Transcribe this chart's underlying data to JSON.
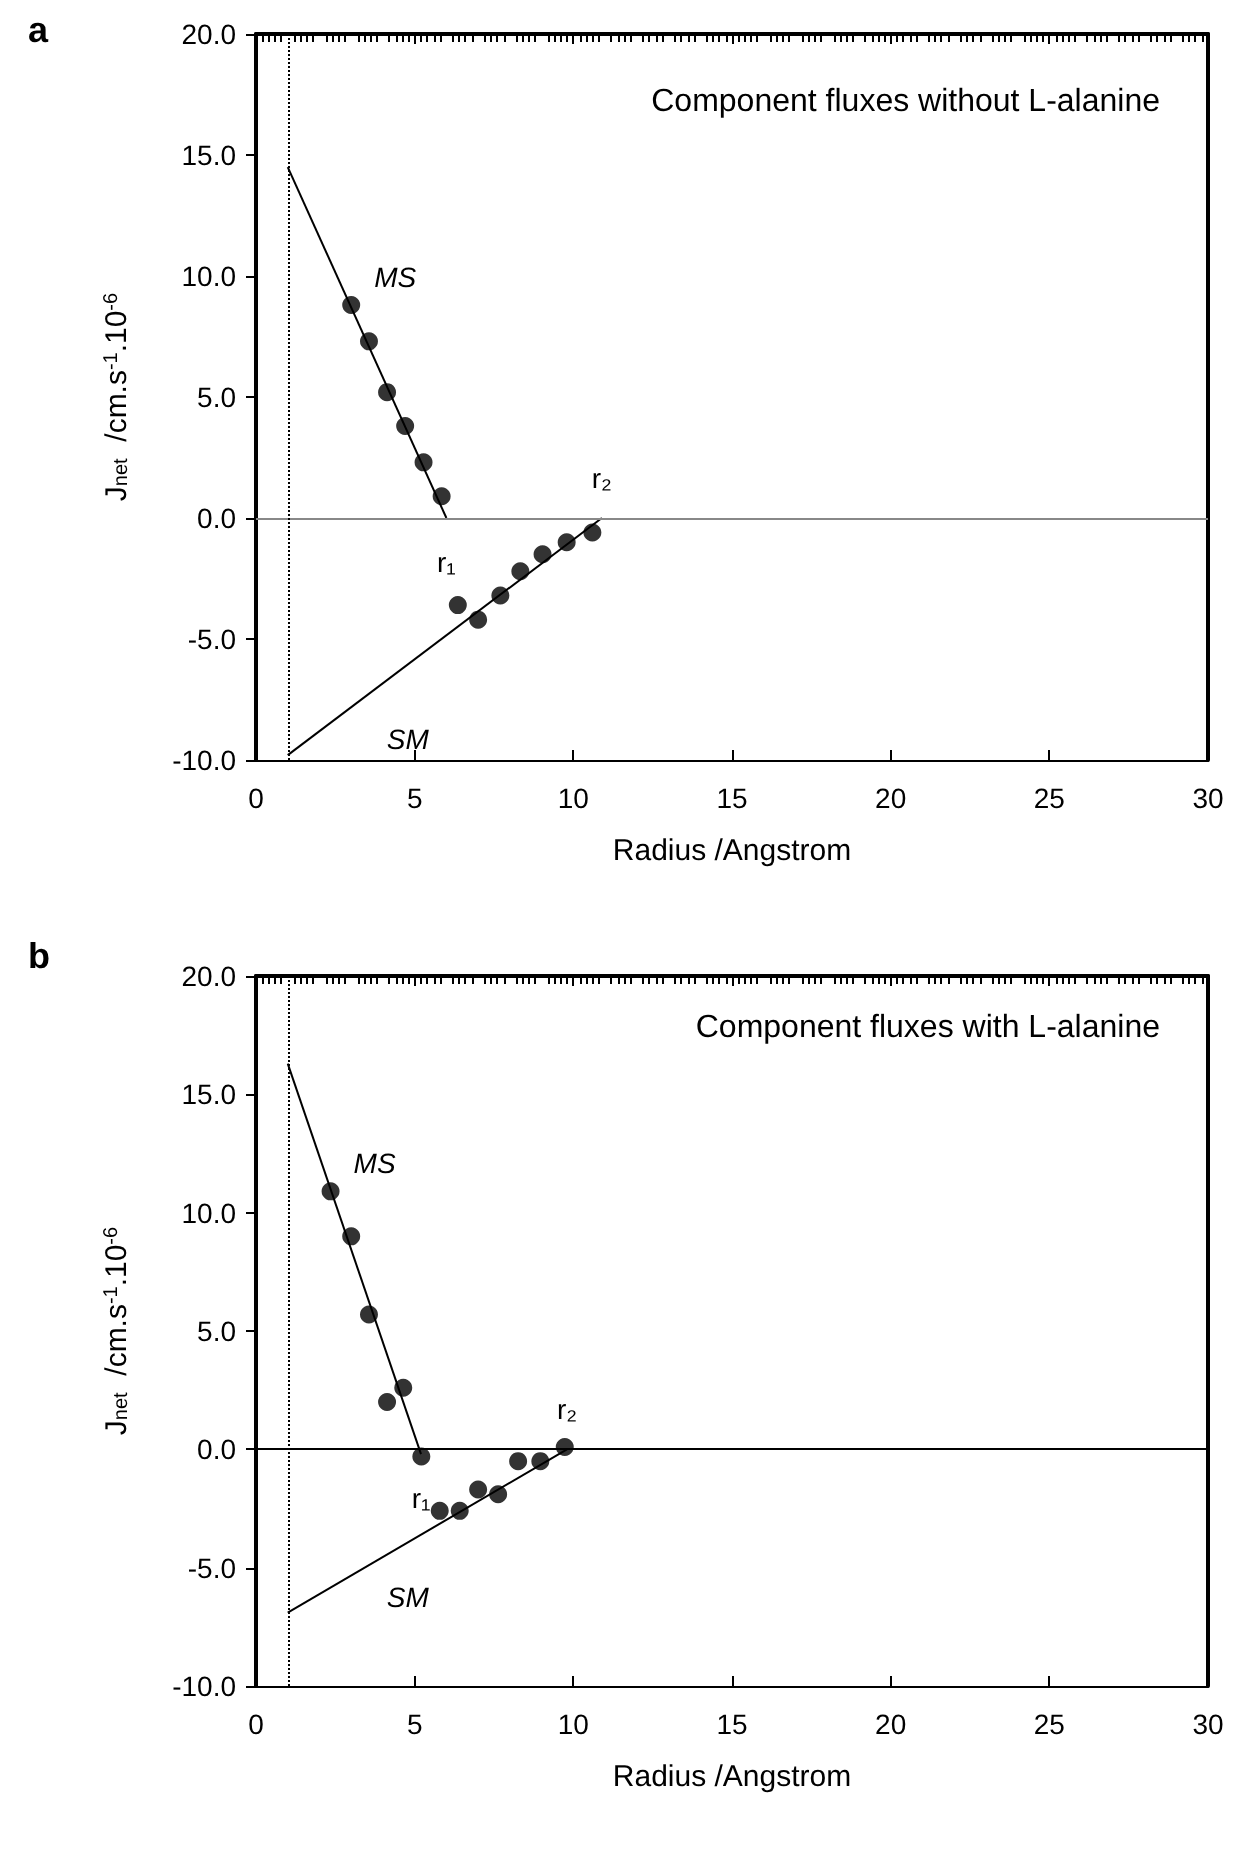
{
  "chart_data": [
    {
      "type": "scatter",
      "title": "Component fluxes without L-alanine",
      "xlabel": "Radius /Angstrom",
      "ylabel": "J$_{net}$  /cm.s$^{-1}$.10$^{-6}$",
      "xlim": [
        0,
        30
      ],
      "xticks": [
        0,
        5,
        10,
        15,
        20,
        25,
        30
      ],
      "ylim": [
        -10,
        20
      ],
      "yticks": [
        {
          "value": -10,
          "label": "-10.0"
        },
        {
          "value": -5,
          "label": "-5.0"
        },
        {
          "value": 0,
          "label": "0.0"
        },
        {
          "value": 5,
          "label": "5.0"
        },
        {
          "value": 10,
          "label": "10.0"
        },
        {
          "value": 15,
          "label": "15.0"
        },
        {
          "value": 20,
          "label": "20.0"
        }
      ],
      "grid": false,
      "marker": "circle",
      "series": [
        {
          "color": "#000000",
          "x": [
            3.0,
            3.56,
            4.13,
            4.7,
            5.28,
            5.85
          ],
          "values": [
            8.8,
            7.3,
            5.2,
            3.8,
            2.3,
            0.9
          ]
        },
        {
          "type": "line",
          "color": "#000000",
          "marker": "none",
          "x": [
            1,
            6.0
          ],
          "values": [
            14.5,
            0
          ]
        },
        {
          "color": "#000000",
          "x": [
            6.36,
            7.0,
            7.7,
            8.33,
            9.03,
            9.79,
            10.6
          ],
          "values": [
            -3.6,
            -4.2,
            -3.2,
            -2.2,
            -1.5,
            -1.0,
            -0.6
          ]
        },
        {
          "type": "line",
          "color": "#000000",
          "marker": "none",
          "x": [
            1,
            10.9
          ],
          "values": [
            -9.8,
            0
          ]
        }
      ],
      "ref_lines": [
        {
          "axis": "y",
          "value": 0,
          "color": "#888888",
          "line_style": "solid"
        },
        {
          "axis": "x",
          "value": 1,
          "color": "#000000",
          "line_style": "dotted"
        }
      ],
      "annotations": [
        "a",
        "MS",
        "SM",
        "r₁",
        "r₂"
      ]
    },
    {
      "type": "scatter",
      "title": "Component fluxes with L-alanine",
      "xlabel": "Radius /Angstrom",
      "ylabel": "J$_{net}$  /cm.s$^{-1}$.10$^{-6}$",
      "xlim": [
        0,
        30
      ],
      "xticks": [
        0,
        5,
        10,
        15,
        20,
        25,
        30
      ],
      "ylim": [
        -10,
        20
      ],
      "yticks": [
        {
          "value": -10,
          "label": "-10.0"
        },
        {
          "value": -5,
          "label": "-5.0"
        },
        {
          "value": 0,
          "label": "0.0"
        },
        {
          "value": 5,
          "label": "5.0"
        },
        {
          "value": 10,
          "label": "10.0"
        },
        {
          "value": 15,
          "label": "15.0"
        },
        {
          "value": 20,
          "label": "20.0"
        }
      ],
      "grid": false,
      "marker": "circle",
      "series": [
        {
          "color": "#000000",
          "x": [
            2.35,
            3.0,
            3.56,
            4.13,
            4.64,
            5.21
          ],
          "values": [
            10.9,
            9.0,
            5.7,
            2.0,
            2.6,
            -0.3
          ]
        },
        {
          "type": "line",
          "color": "#000000",
          "marker": "none",
          "x": [
            1,
            5.2
          ],
          "values": [
            16.3,
            -0.2
          ]
        },
        {
          "color": "#000000",
          "x": [
            5.79,
            6.42,
            7.0,
            7.63,
            8.26,
            8.96,
            9.73
          ],
          "values": [
            -2.6,
            -2.6,
            -1.7,
            -1.9,
            -0.5,
            -0.5,
            0.1
          ]
        },
        {
          "type": "line",
          "color": "#000000",
          "marker": "none",
          "x": [
            1,
            9.8
          ],
          "values": [
            -6.9,
            0
          ]
        }
      ],
      "ref_lines": [
        {
          "axis": "y",
          "value": 0,
          "color": "#000000",
          "line_style": "solid"
        },
        {
          "axis": "x",
          "value": 1,
          "color": "#000000",
          "line_style": "dotted"
        }
      ],
      "annotations": [
        "b",
        "MS",
        "SM",
        "r₁",
        "r₂"
      ]
    }
  ]
}
